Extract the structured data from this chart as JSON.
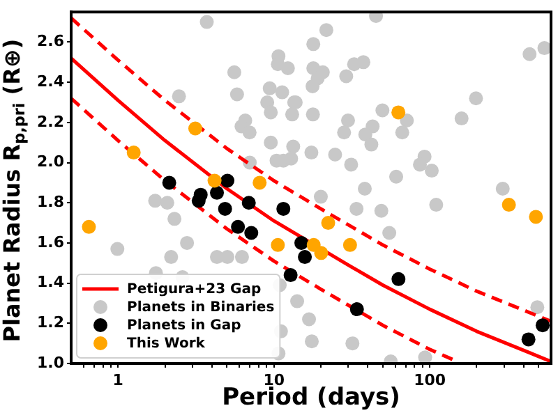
{
  "chart_data": {
    "type": "scatter",
    "xlabel": "Period (days)",
    "ylabel": "Planet Radius R$_{p,pri}$ (R⊕)",
    "log": "x",
    "legend": "bottom left",
    "xlim": [
      0.5,
      600
    ],
    "ylim": [
      1.0,
      2.75
    ],
    "xticks": [
      {
        "value": 0.6,
        "label": null
      },
      {
        "value": 0.7,
        "label": null
      },
      {
        "value": 0.8,
        "label": null
      },
      {
        "value": 0.9,
        "label": null
      },
      1,
      {
        "value": 2,
        "label": null
      },
      {
        "value": 3,
        "label": null
      },
      {
        "value": 4,
        "label": null
      },
      {
        "value": 5,
        "label": null
      },
      {
        "value": 6,
        "label": null
      },
      {
        "value": 7,
        "label": null
      },
      {
        "value": 8,
        "label": null
      },
      {
        "value": 9,
        "label": null
      },
      10,
      {
        "value": 20,
        "label": null
      },
      {
        "value": 30,
        "label": null
      },
      {
        "value": 40,
        "label": null
      },
      {
        "value": 50,
        "label": null
      },
      {
        "value": 60,
        "label": null
      },
      {
        "value": 70,
        "label": null
      },
      {
        "value": 80,
        "label": null
      },
      {
        "value": 90,
        "label": null
      },
      100,
      {
        "value": 200,
        "label": null
      },
      {
        "value": 300,
        "label": null
      },
      {
        "value": 400,
        "label": null
      },
      {
        "value": 500,
        "label": null
      }
    ],
    "yticks": [
      {
        "value": 1,
        "label": "1.0"
      },
      {
        "value": 1.2,
        "label": "1.2"
      },
      {
        "value": 1.4,
        "label": "1.4"
      },
      {
        "value": 1.6,
        "label": "1.6"
      },
      {
        "value": 1.8,
        "label": "1.8"
      },
      {
        "value": 2,
        "label": "2.0"
      },
      {
        "value": 2.2,
        "label": "2.2"
      },
      {
        "value": 2.4,
        "label": "2.4"
      },
      {
        "value": 2.6,
        "label": "2.6"
      }
    ],
    "series": [
      {
        "name": "Planets in Binaries",
        "type": "scatter",
        "marker": "circle",
        "color": "#c8c8c8",
        "x": [
          3.71,
          2.46,
          5.57,
          5.8,
          10.7,
          10.6,
          12.3,
          9.4,
          11.3,
          9.06,
          9.55,
          13.5,
          13.1,
          6.55,
          6.2,
          6.98,
          9.55,
          13.3,
          7.0,
          10.4,
          11.5,
          12.9,
          45.2,
          21.7,
          17.9,
          32.7,
          37.5,
          29.1,
          17.9,
          20.6,
          19.1,
          17.7,
          13.8,
          17.8,
          49.7,
          71.3,
          29.9,
          28.2,
          43,
          38.6,
          66.6,
          42.2,
          160,
          198,
          437,
          544,
          17.4,
          24.7,
          31.3,
          92.6,
          86.5,
          103,
          60.9,
          20,
          38.3,
          33.9,
          48.9,
          110,
          55,
          294,
          14.1,
          16.8,
          17.5,
          31.9,
          56.2,
          93.4,
          490,
          0.99,
          1.73,
          2.07,
          2.3,
          2.19,
          2.77,
          1.75,
          2.59,
          4.31,
          5.03,
          6.24,
          10.9,
          11.1,
          10.7
        ],
        "values": [
          2.7,
          2.33,
          2.45,
          2.34,
          2.53,
          2.49,
          2.47,
          2.37,
          2.35,
          2.3,
          2.25,
          2.3,
          2.24,
          2.21,
          2.18,
          2.15,
          2.1,
          2.08,
          2.0,
          2.01,
          2.01,
          2.02,
          2.73,
          2.66,
          2.59,
          2.49,
          2.5,
          2.43,
          2.47,
          2.45,
          2.42,
          2.38,
          2.3,
          2.24,
          2.26,
          2.21,
          2.21,
          2.15,
          2.18,
          2.14,
          2.15,
          2.09,
          2.22,
          2.32,
          2.54,
          2.57,
          2.05,
          2.04,
          1.99,
          2.03,
          1.99,
          1.96,
          1.93,
          1.83,
          1.87,
          1.77,
          1.76,
          1.79,
          1.65,
          1.87,
          1.31,
          1.22,
          1.11,
          1.1,
          1.01,
          1.03,
          1.28,
          1.57,
          1.81,
          1.8,
          1.72,
          1.53,
          1.6,
          1.45,
          1.43,
          1.53,
          1.53,
          1.53,
          1.39,
          1.16,
          1.05
        ]
      },
      {
        "name": "Petigura+23 Gap",
        "type": "line",
        "marker": "none",
        "line_style": "solid",
        "color": "#ff0000",
        "x": [
          0.5,
          1,
          2,
          5,
          10,
          30,
          50,
          100,
          200,
          600
        ],
        "values": [
          2.52,
          2.31,
          2.11,
          1.87,
          1.71,
          1.49,
          1.39,
          1.27,
          1.16,
          1.01
        ]
      },
      {
        "type": "line",
        "marker": "none",
        "line_style": "dashed",
        "color": "#ff0000",
        "x": [
          0.5,
          1,
          2,
          5,
          10,
          20,
          50,
          100,
          200,
          600
        ],
        "values": [
          2.72,
          2.51,
          2.31,
          2.07,
          1.91,
          1.77,
          1.59,
          1.47,
          1.36,
          1.21
        ]
      },
      {
        "type": "line",
        "marker": "none",
        "line_style": "dashed",
        "color": "#ff0000",
        "x": [
          0.5,
          1,
          2,
          5,
          10,
          20,
          50,
          100,
          150
        ],
        "values": [
          2.32,
          2.11,
          1.91,
          1.67,
          1.51,
          1.37,
          1.19,
          1.07,
          1.01
        ]
      },
      {
        "name": "Planets in Gap",
        "type": "scatter",
        "marker": "circle",
        "color": "#000000",
        "x": [
          2.13,
          3.29,
          3.39,
          4.31,
          5.03,
          4.86,
          5.88,
          6.9,
          7.16,
          11.5,
          15.0,
          15.8,
          12.8,
          63,
          34.1,
          430,
          530
        ],
        "values": [
          1.9,
          1.81,
          1.84,
          1.85,
          1.91,
          1.77,
          1.68,
          1.8,
          1.65,
          1.77,
          1.6,
          1.53,
          1.44,
          1.42,
          1.27,
          1.12,
          1.19
        ]
      },
      {
        "name": "This Work",
        "type": "scatter",
        "marker": "circle",
        "color": "#ffa500",
        "x": [
          0.65,
          1.26,
          3.13,
          4.16,
          8.1,
          10.6,
          18.0,
          20.1,
          22.3,
          30.8,
          62.9,
          322,
          480
        ],
        "values": [
          1.68,
          2.05,
          2.17,
          1.91,
          1.9,
          1.59,
          1.59,
          1.55,
          1.7,
          1.59,
          2.25,
          1.79,
          1.73
        ]
      }
    ]
  }
}
